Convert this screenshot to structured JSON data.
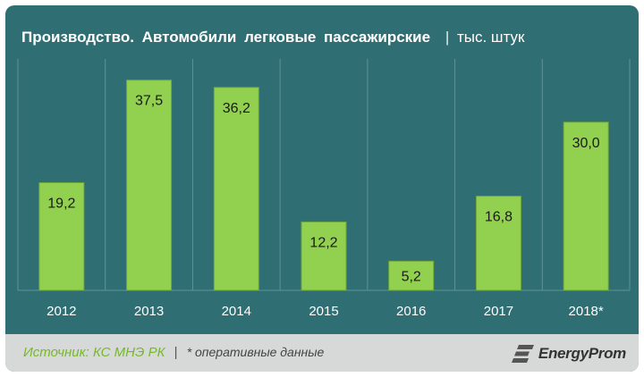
{
  "header": {
    "title": "Производство.  Автомобили  легковые  пассажирские",
    "separator": "|",
    "unit": "тыс. штук"
  },
  "footer": {
    "source": "Источник: КС МНЭ РК",
    "separator": "|",
    "note": "* оперативные данные",
    "logo": "EnergyProm"
  },
  "colors": {
    "background": "#2f6e73",
    "bar": "#92d050",
    "bar_stroke": "#6fa837",
    "grid": "#5e9498",
    "footer_bg": "#d6d9d8",
    "source_text": "#77b82a"
  },
  "chart_data": {
    "type": "bar",
    "title": "Производство.  Автомобили  легковые  пассажирские",
    "xlabel": "",
    "ylabel": "",
    "categories": [
      "2012",
      "2013",
      "2014",
      "2015",
      "2016",
      "2017",
      "2018*"
    ],
    "values": [
      19.2,
      37.5,
      36.2,
      12.2,
      5.2,
      16.8,
      30.0
    ],
    "labels": [
      "19,2",
      "37,5",
      "36,2",
      "12,2",
      "5,2",
      "16,8",
      "30,0"
    ],
    "ylim": [
      0,
      40
    ],
    "grid": "vertical"
  }
}
